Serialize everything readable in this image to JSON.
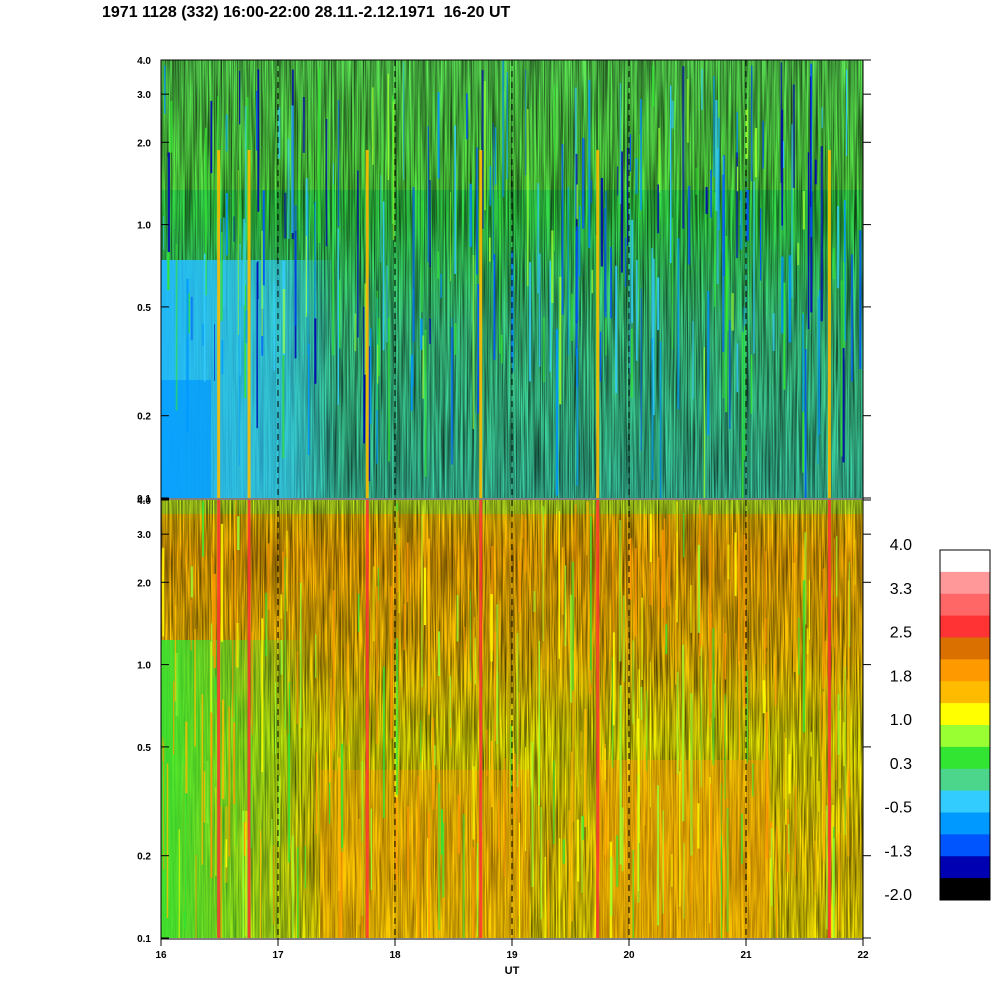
{
  "title": "1971 1128 (332) 16:00-22:00 28.11.-2.12.1971  16-20 UT",
  "chart_data": {
    "type": "heatmap",
    "panels": [
      {
        "name": "top",
        "y_ticks": [
          "4.0",
          "3.0",
          "2.0",
          "1.0",
          "0.5",
          "0.2",
          "0.1"
        ],
        "y_values": [
          4.0,
          3.0,
          2.0,
          1.0,
          0.5,
          0.2,
          0.1
        ],
        "ylim": [
          0.1,
          4.0
        ],
        "y_scale": "log",
        "dominant_colors": [
          "#33e533",
          "#4cd68c",
          "#33ccff",
          "#99ff33",
          "#0066ff"
        ]
      },
      {
        "name": "bottom",
        "y_ticks": [
          "4.0",
          "3.0",
          "2.0",
          "1.0",
          "0.5",
          "0.2",
          "0.1"
        ],
        "y_values": [
          4.0,
          3.0,
          2.0,
          1.0,
          0.5,
          0.2,
          0.1
        ],
        "ylim": [
          0.1,
          4.0
        ],
        "y_scale": "log",
        "dominant_colors": [
          "#ffff00",
          "#ffbb00",
          "#ff9900",
          "#99ff33",
          "#33e533"
        ]
      }
    ],
    "x_ticks": [
      "16",
      "17",
      "18",
      "19",
      "20",
      "21",
      "22"
    ],
    "x_values": [
      16,
      17,
      18,
      19,
      20,
      21,
      22
    ],
    "xlim": [
      16,
      22
    ],
    "xlabel": "UT",
    "dashed_verticals_at": [
      17,
      18,
      19,
      20,
      21
    ],
    "colorbar": {
      "labels": [
        "4.0",
        "3.3",
        "2.5",
        "1.8",
        "1.0",
        "0.3",
        "-0.5",
        "-1.3",
        "-2.0"
      ],
      "colors_top_to_bottom": [
        "#ffffff",
        "#ff9999",
        "#ff6666",
        "#ff3333",
        "#d97000",
        "#ff9900",
        "#ffbb00",
        "#ffff00",
        "#99ff33",
        "#33e533",
        "#4cd68c",
        "#33ccff",
        "#0099ff",
        "#0055ff",
        "#0000b3",
        "#000000"
      ]
    }
  }
}
